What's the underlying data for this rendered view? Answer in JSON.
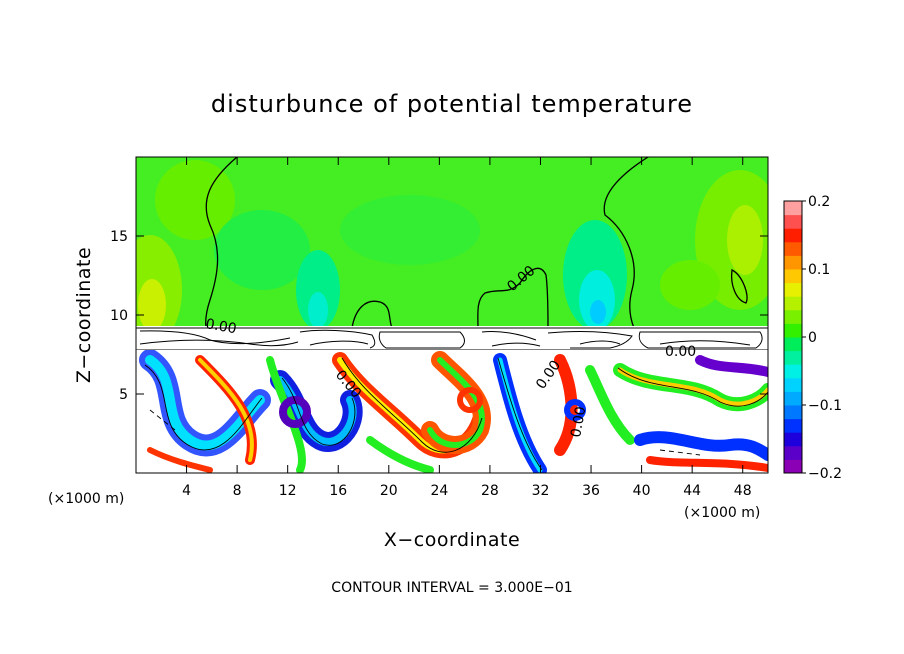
{
  "chart_data": {
    "type": "heatmap",
    "title": "disturbunce of potential temperature",
    "xlabel": "X−coordinate",
    "ylabel": "Z−coordinate",
    "x_unit": "(×1000 m)",
    "y_unit": "(×1000 m)",
    "xlim": [
      0,
      50
    ],
    "ylim": [
      0,
      20
    ],
    "x_ticks": [
      4,
      8,
      12,
      16,
      20,
      24,
      28,
      32,
      36,
      40,
      44,
      48
    ],
    "y_ticks": [
      5,
      10,
      15
    ],
    "colorbar": {
      "range": [
        -0.2,
        0.2
      ],
      "ticks": [
        0.2,
        0.1,
        0,
        -0.1,
        -0.2
      ],
      "tick_labels": [
        "0.2",
        "0.1",
        "0",
        "−0.1",
        "−0.2"
      ],
      "colors": [
        "#8b00b4",
        "#5a00c8",
        "#1e00dc",
        "#0032ff",
        "#0078ff",
        "#00aaff",
        "#00d2ff",
        "#00f0e6",
        "#00f0a0",
        "#00ee5a",
        "#32f000",
        "#78f000",
        "#b4f000",
        "#e6f000",
        "#ffc800",
        "#ff9600",
        "#ff5a00",
        "#ff1e00",
        "#ff5050",
        "#ffa0a0"
      ]
    },
    "contour_labels": [
      "0.00",
      "0.00",
      "0.00",
      "0.00",
      "0.00",
      "0.00"
    ],
    "footnote": "CONTOUR INTERVAL = 3.000E−01"
  }
}
